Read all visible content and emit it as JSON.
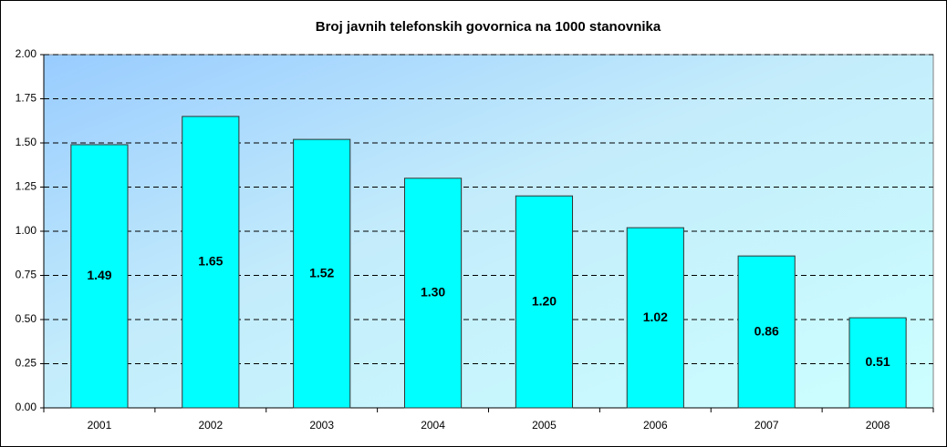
{
  "chart_data": {
    "type": "bar",
    "title": "Broj javnih telefonskih govornica na 1000 stanovnika",
    "categories": [
      "2001",
      "2002",
      "2003",
      "2004",
      "2005",
      "2006",
      "2007",
      "2008"
    ],
    "values": [
      1.49,
      1.65,
      1.52,
      1.3,
      1.2,
      1.02,
      0.86,
      0.51
    ],
    "value_labels": [
      "1.49",
      "1.65",
      "1.52",
      "1.30",
      "1.20",
      "1.02",
      "0.86",
      "0.51"
    ],
    "color": "#00ffff",
    "ylim": [
      0,
      2
    ],
    "yticks": [
      {
        "value": 0,
        "label": "0.00"
      },
      {
        "value": 0.25,
        "label": "0.25"
      },
      {
        "value": 0.5,
        "label": "0.50"
      },
      {
        "value": 0.75,
        "label": "0.75"
      },
      {
        "value": 1,
        "label": "1.00"
      },
      {
        "value": 1.25,
        "label": "1.25"
      },
      {
        "value": 1.5,
        "label": "1.50"
      },
      {
        "value": 1.75,
        "label": "1.75"
      },
      {
        "value": 2,
        "label": "2.00"
      }
    ],
    "grid": true
  }
}
